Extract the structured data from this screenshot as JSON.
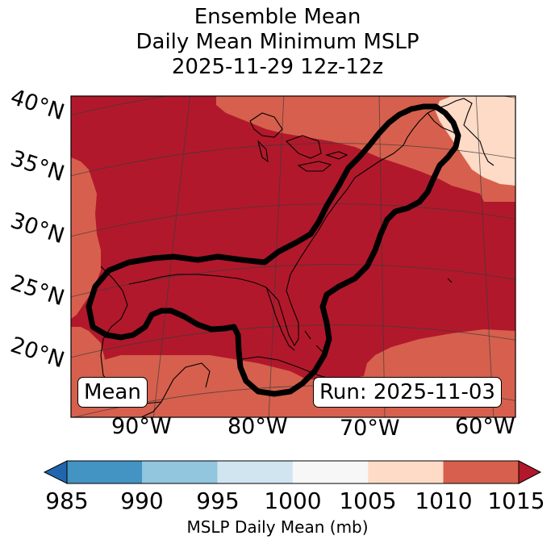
{
  "title": {
    "line1": "Ensemble Mean",
    "line2": "Daily Mean Minimum MSLP",
    "line3": "2025-11-29 12z-12z"
  },
  "map": {
    "lat_labels": [
      "40°N",
      "35°N",
      "30°N",
      "25°N",
      "20°N"
    ],
    "lon_labels": [
      "90°W",
      "80°W",
      "70°W",
      "60°W"
    ],
    "left_box": "Mean",
    "right_box": "Run: 2025-11-03",
    "colors": {
      "band_1010_1015": "#b2182b",
      "band_1005_1010": "#d6604d",
      "band_1000_1005": "#fddbc7",
      "coast": "#000000",
      "contour": "#000000"
    }
  },
  "colorbar": {
    "label": "MSLP Daily Mean (mb)",
    "ticks": [
      "985",
      "990",
      "995",
      "1000",
      "1005",
      "1010",
      "1015"
    ],
    "colors": [
      "#4393c3",
      "#92c5de",
      "#d1e5f0",
      "#f7f7f7",
      "#fddbc7",
      "#d6604d"
    ],
    "under_color": "#2166ac",
    "over_color": "#b2182b"
  }
}
